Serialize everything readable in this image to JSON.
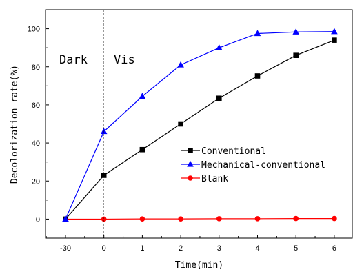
{
  "chart_data": {
    "type": "line",
    "title": "",
    "xlabel": "Time(min)",
    "ylabel": "Decolorization rate(%)",
    "x_tick_labels": [
      "-30",
      "0",
      "1",
      "2",
      "3",
      "4",
      "5",
      "6"
    ],
    "y_ticks": [
      0,
      20,
      40,
      60,
      80,
      100
    ],
    "ylim": [
      -10,
      110
    ],
    "grid": false,
    "legend_position": "center-right",
    "annotations": [
      "Dark",
      "Vis"
    ],
    "series": [
      {
        "name": "Conventional",
        "color": "#000000",
        "marker": "square",
        "values": [
          0,
          23,
          36.5,
          50,
          63.5,
          75.2,
          86,
          94
        ]
      },
      {
        "name": "Mechanical-conventional",
        "color": "#0000ff",
        "marker": "triangle",
        "values": [
          0,
          46,
          64.5,
          81,
          90,
          97.5,
          98.3,
          98.5
        ]
      },
      {
        "name": "Blank",
        "color": "#ff0000",
        "marker": "circle",
        "values": [
          0,
          0,
          0.1,
          0.1,
          0.2,
          0.2,
          0.3,
          0.3
        ]
      }
    ]
  }
}
